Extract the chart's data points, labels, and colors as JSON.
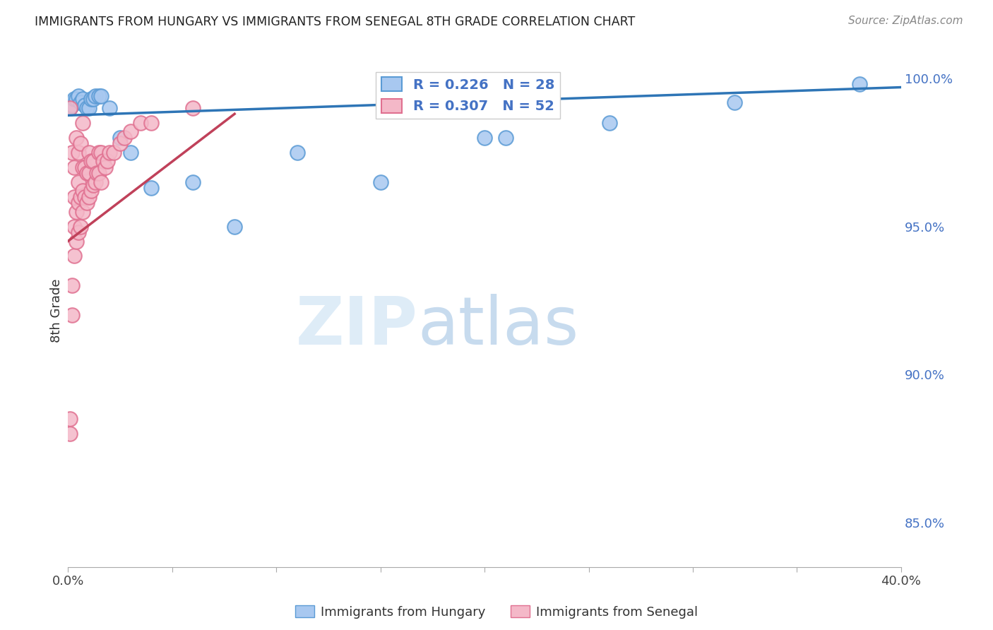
{
  "title": "IMMIGRANTS FROM HUNGARY VS IMMIGRANTS FROM SENEGAL 8TH GRADE CORRELATION CHART",
  "source": "Source: ZipAtlas.com",
  "ylabel": "8th Grade",
  "x_min": 0.0,
  "x_max": 0.4,
  "y_min": 0.835,
  "y_max": 1.008,
  "x_ticks": [
    0.0,
    0.05,
    0.1,
    0.15,
    0.2,
    0.25,
    0.3,
    0.35,
    0.4
  ],
  "x_tick_labels": [
    "0.0%",
    "",
    "",
    "",
    "",
    "",
    "",
    "",
    "40.0%"
  ],
  "y_ticks": [
    0.85,
    0.9,
    0.95,
    1.0
  ],
  "y_tick_labels": [
    "85.0%",
    "90.0%",
    "95.0%",
    "100.0%"
  ],
  "hungary_color": "#a8c8f0",
  "hungary_edge_color": "#5b9bd5",
  "senegal_color": "#f4b8c8",
  "senegal_edge_color": "#e07090",
  "trend_hungary_color": "#2e75b6",
  "trend_senegal_color": "#c0415a",
  "R_hungary": 0.226,
  "N_hungary": 28,
  "R_senegal": 0.307,
  "N_senegal": 52,
  "hungary_x": [
    0.001,
    0.002,
    0.003,
    0.004,
    0.005,
    0.006,
    0.007,
    0.008,
    0.009,
    0.01,
    0.011,
    0.012,
    0.013,
    0.015,
    0.016,
    0.02,
    0.025,
    0.03,
    0.04,
    0.06,
    0.08,
    0.11,
    0.15,
    0.2,
    0.21,
    0.26,
    0.32,
    0.38
  ],
  "hungary_y": [
    0.99,
    0.991,
    0.993,
    0.993,
    0.994,
    0.992,
    0.993,
    0.991,
    0.99,
    0.99,
    0.993,
    0.993,
    0.994,
    0.994,
    0.994,
    0.99,
    0.98,
    0.975,
    0.963,
    0.965,
    0.95,
    0.975,
    0.965,
    0.98,
    0.98,
    0.985,
    0.992,
    0.998
  ],
  "senegal_x": [
    0.001,
    0.001,
    0.001,
    0.002,
    0.002,
    0.002,
    0.003,
    0.003,
    0.003,
    0.003,
    0.004,
    0.004,
    0.004,
    0.005,
    0.005,
    0.005,
    0.005,
    0.006,
    0.006,
    0.006,
    0.007,
    0.007,
    0.007,
    0.007,
    0.008,
    0.008,
    0.009,
    0.009,
    0.01,
    0.01,
    0.01,
    0.011,
    0.011,
    0.012,
    0.012,
    0.013,
    0.014,
    0.015,
    0.015,
    0.016,
    0.016,
    0.017,
    0.018,
    0.019,
    0.02,
    0.022,
    0.025,
    0.027,
    0.03,
    0.035,
    0.04,
    0.06
  ],
  "senegal_y": [
    0.88,
    0.885,
    0.99,
    0.92,
    0.93,
    0.975,
    0.94,
    0.95,
    0.96,
    0.97,
    0.945,
    0.955,
    0.98,
    0.948,
    0.958,
    0.965,
    0.975,
    0.95,
    0.96,
    0.978,
    0.955,
    0.962,
    0.97,
    0.985,
    0.96,
    0.97,
    0.958,
    0.968,
    0.96,
    0.968,
    0.975,
    0.962,
    0.972,
    0.964,
    0.972,
    0.965,
    0.968,
    0.968,
    0.975,
    0.965,
    0.975,
    0.972,
    0.97,
    0.972,
    0.975,
    0.975,
    0.978,
    0.98,
    0.982,
    0.985,
    0.985,
    0.99
  ],
  "hungary_trend_x": [
    0.0,
    0.4
  ],
  "hungary_trend_y": [
    0.9875,
    0.997
  ],
  "senegal_trend_x": [
    0.0,
    0.08
  ],
  "senegal_trend_y": [
    0.945,
    0.988
  ],
  "watermark_zip": "ZIP",
  "watermark_atlas": "atlas",
  "background_color": "#ffffff",
  "grid_color": "#cccccc",
  "grid_style": "--"
}
